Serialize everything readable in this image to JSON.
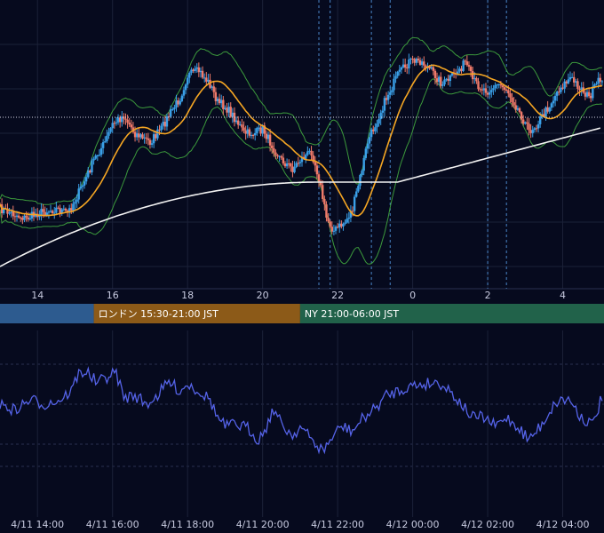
{
  "chart_data": [
    {
      "type": "candlestick",
      "title": "",
      "x_range_hours": [
        13.0,
        29.1
      ],
      "x_ticks": [
        {
          "h": 14,
          "label": "14"
        },
        {
          "h": 16,
          "label": "16"
        },
        {
          "h": 18,
          "label": "18"
        },
        {
          "h": 20,
          "label": "20"
        },
        {
          "h": 22,
          "label": "22"
        },
        {
          "h": 24,
          "label": "0"
        },
        {
          "h": 26,
          "label": "2"
        },
        {
          "h": 28,
          "label": "4"
        }
      ],
      "grid": true,
      "reference_level_label": "",
      "overlays": [
        {
          "kind": "moving-average-fast",
          "color": "#f5a623"
        },
        {
          "kind": "moving-average-slow",
          "color": "#f2f2f2"
        },
        {
          "kind": "bollinger-bands",
          "color": "#3c9a3c"
        }
      ],
      "candle_colors": {
        "up": "#3aa0e8",
        "down": "#f07a6a"
      },
      "event_markers_hours": [
        21.5,
        21.8,
        22.9,
        23.4,
        26.0,
        26.5
      ]
    },
    {
      "type": "line",
      "series": [
        {
          "color": "#5563e8"
        }
      ],
      "x_ticks": [
        {
          "h": 14,
          "label": "4/11 14:00"
        },
        {
          "h": 16,
          "label": "4/11 16:00"
        },
        {
          "h": 18,
          "label": "4/11 18:00"
        },
        {
          "h": 20,
          "label": "4/11 20:00"
        },
        {
          "h": 22,
          "label": "4/11 22:00"
        },
        {
          "h": 24,
          "label": "4/12 00:00"
        },
        {
          "h": 26,
          "label": "4/12 02:00"
        },
        {
          "h": 28,
          "label": "4/12 04:00"
        }
      ],
      "grid": true
    }
  ],
  "sessions": [
    {
      "name": "tokyo",
      "label": "",
      "start_h": 13.0,
      "end_h": 15.5,
      "color": "#2d5b8f"
    },
    {
      "name": "london",
      "label": "ロンドン 15:30-21:00 JST",
      "start_h": 15.5,
      "end_h": 21.0,
      "color": "#8c5a18"
    },
    {
      "name": "newyork",
      "label": "NY 21:00-06:00 JST",
      "start_h": 21.0,
      "end_h": 29.1,
      "color": "#21624a"
    }
  ]
}
